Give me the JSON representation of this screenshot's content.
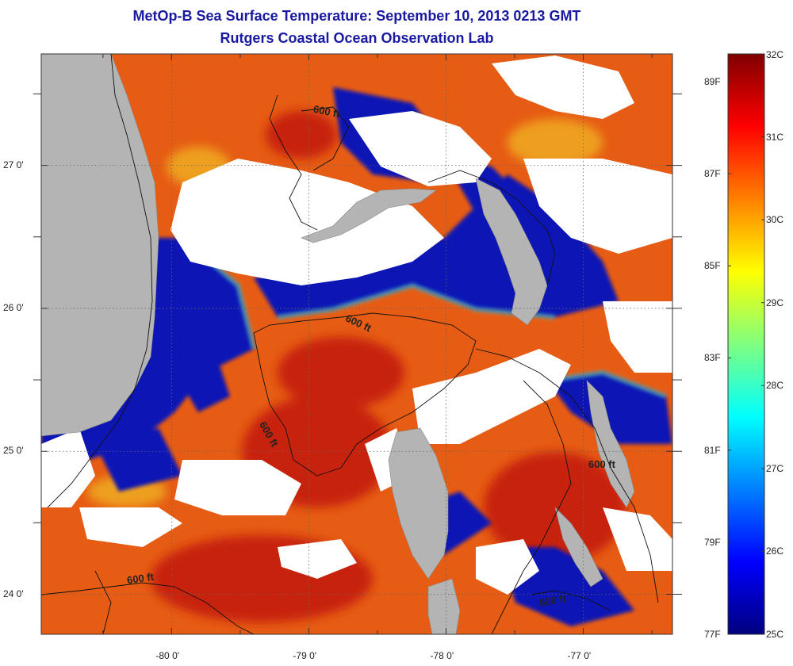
{
  "title": "MetOp-B Sea Surface Temperature:  September 10, 2013 0213 GMT",
  "subtitle": "Rutgers Coastal Ocean Observation Lab",
  "map": {
    "lon_range": [
      -80.95,
      -76.35
    ],
    "lat_range": [
      23.72,
      27.78
    ],
    "x_ticks": [
      {
        "value": -80,
        "label": "-80 0'"
      },
      {
        "value": -79,
        "label": "-79 0'"
      },
      {
        "value": -78,
        "label": "-78 0'"
      },
      {
        "value": -77,
        "label": "-77 0'"
      }
    ],
    "y_ticks": [
      {
        "value": 27,
        "label": "27 0'"
      },
      {
        "value": 26,
        "label": "26 0'"
      },
      {
        "value": 25,
        "label": "25 0'"
      },
      {
        "value": 24,
        "label": "24 0'"
      }
    ],
    "contour_label": "600 ft",
    "colors": {
      "land": "#b4b4b4",
      "cloud": "#ffffff",
      "cold_water": "#0a14b4",
      "warm_water": "#e85a14",
      "hot_water": "#c81e0a"
    }
  },
  "colorbar": {
    "celsius": [
      "32C",
      "31C",
      "30C",
      "29C",
      "28C",
      "27C",
      "26C",
      "25C"
    ],
    "fahrenheit": [
      "89F",
      "87F",
      "85F",
      "83F",
      "81F",
      "79F",
      "77F"
    ],
    "min_c": 25,
    "max_c": 32
  }
}
